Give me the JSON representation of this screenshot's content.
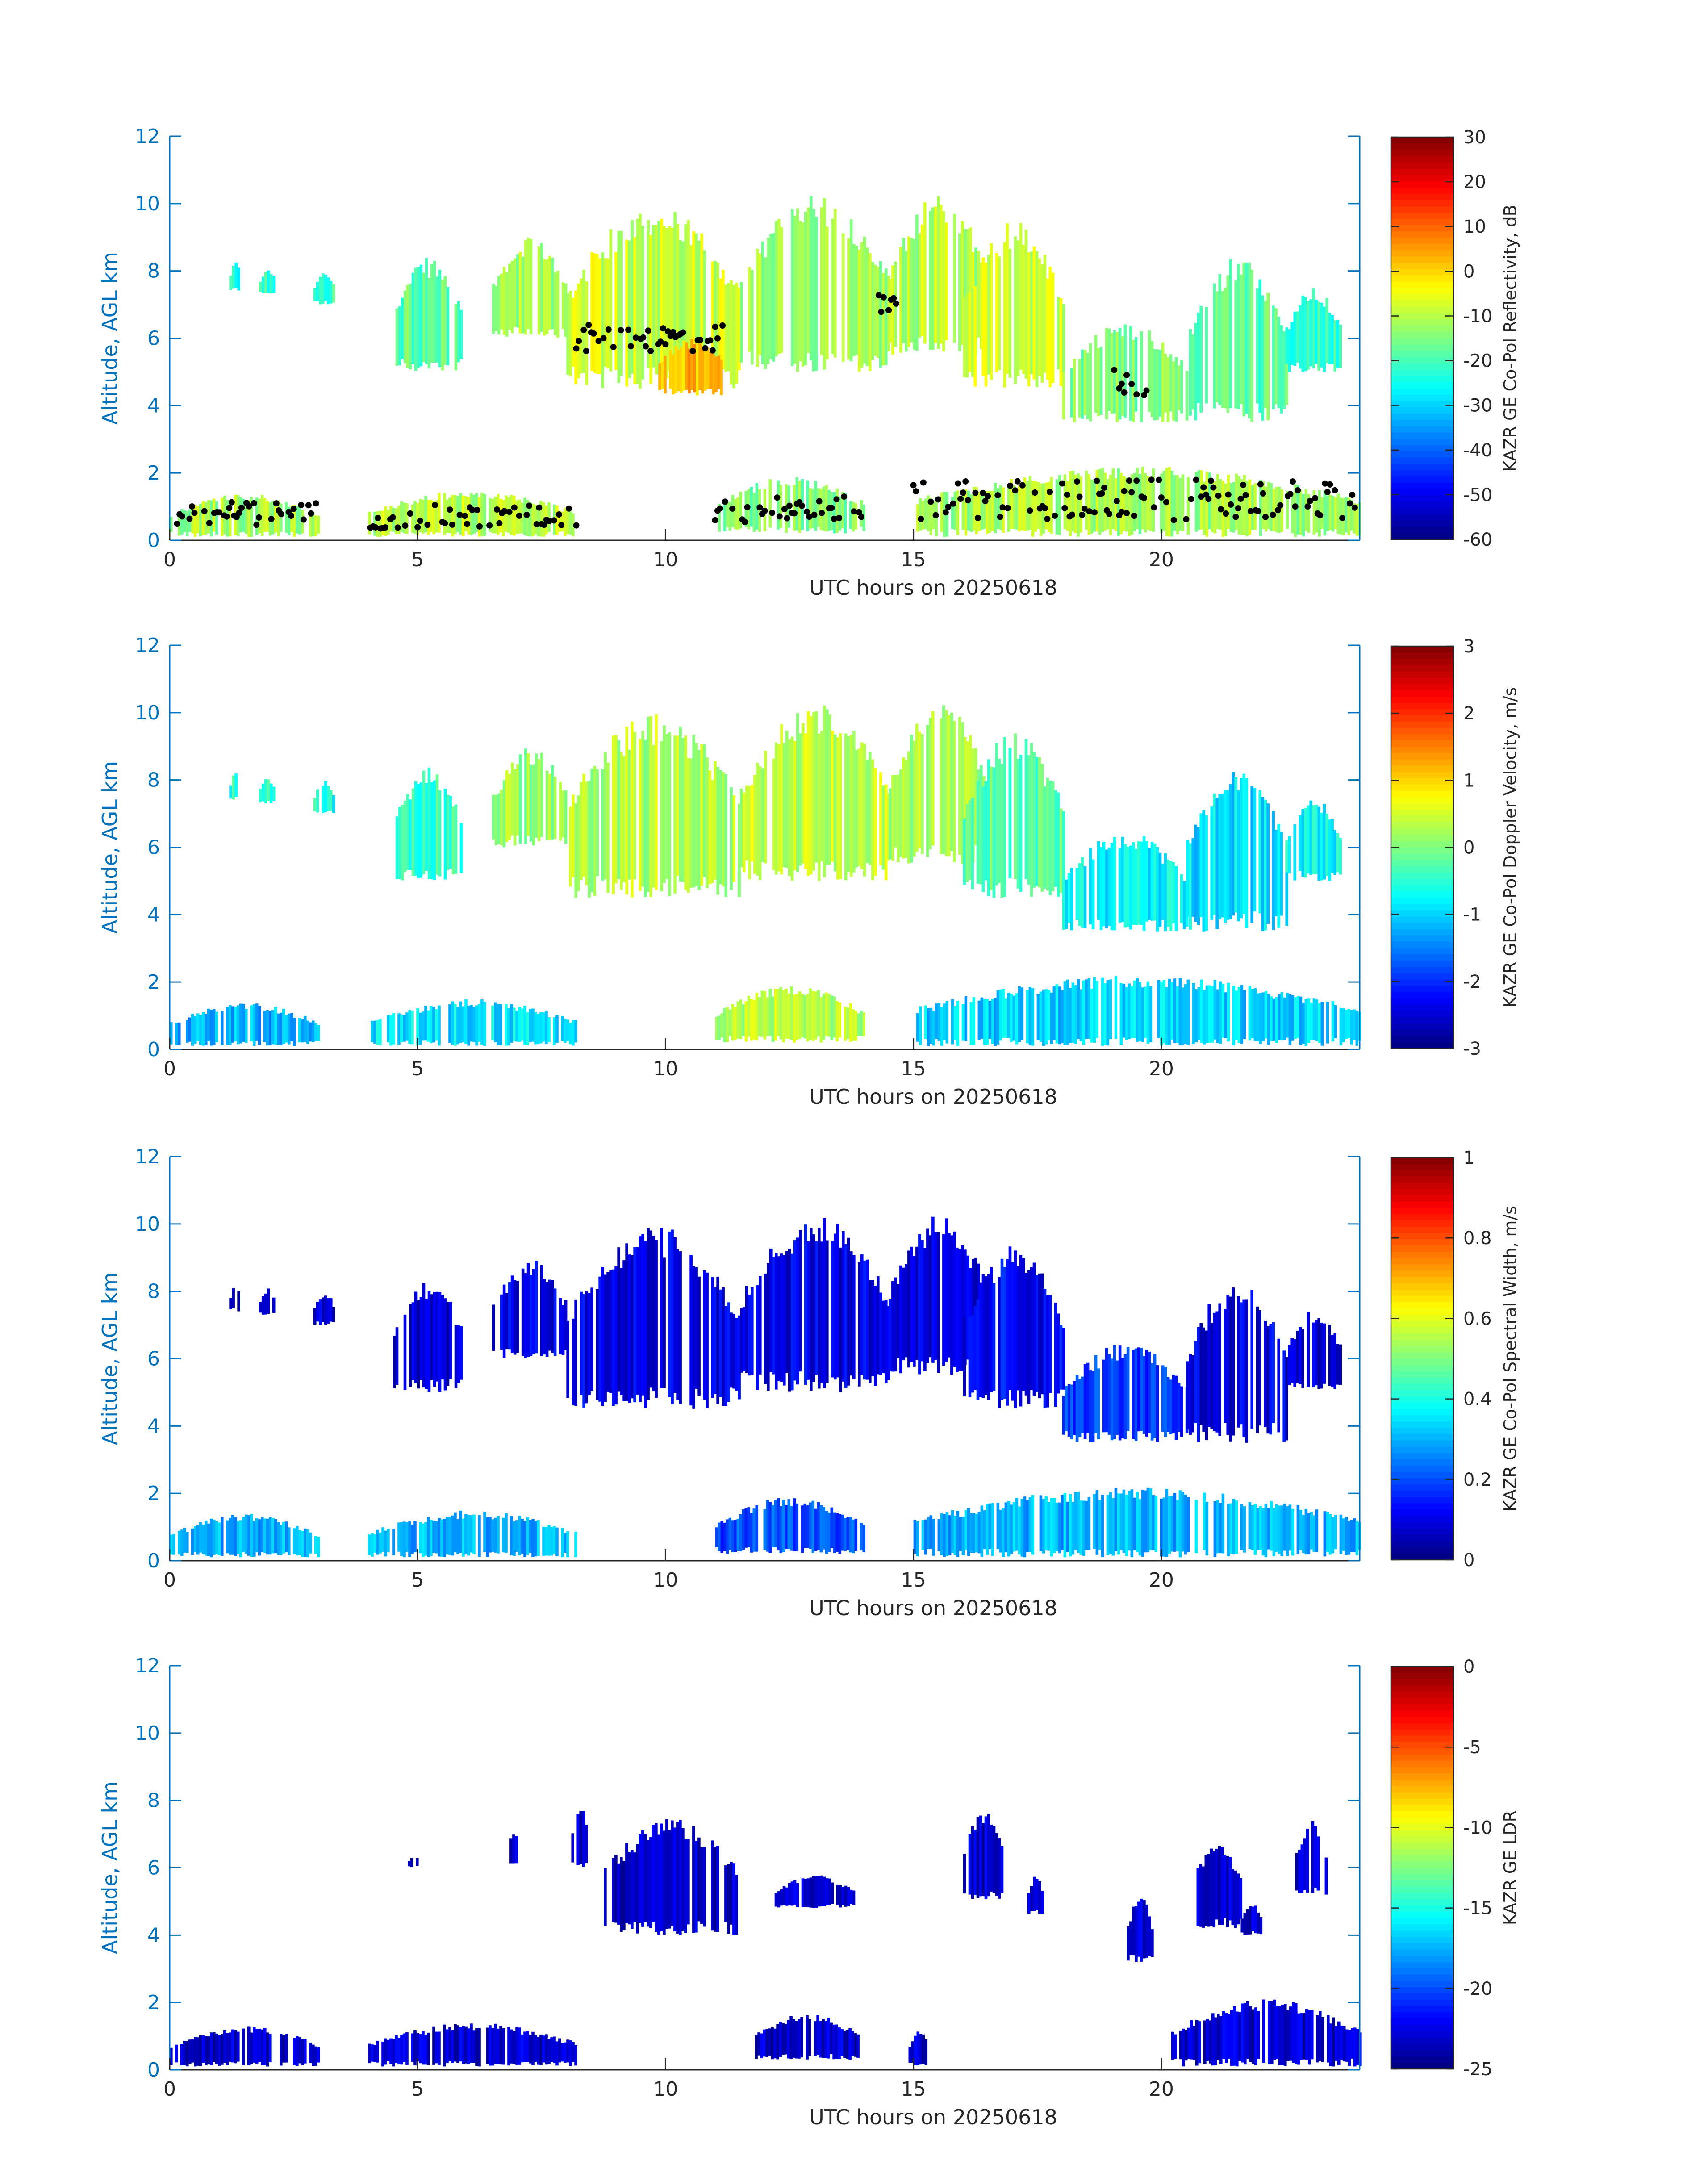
{
  "colors": {
    "axis_blue": "#0072BD",
    "text_dark": "#262626",
    "background": "#ffffff",
    "echo_black": "#000000",
    "colormap": "jet"
  },
  "chart_data": [
    {
      "type": "heatmap",
      "xlabel": "UTC hours on 20250618",
      "ylabel": "Altitude, AGL km",
      "xlim": [
        0,
        24
      ],
      "ylim": [
        0,
        12
      ],
      "xticks": [
        0,
        5,
        10,
        15,
        20
      ],
      "yticks": [
        0,
        2,
        4,
        6,
        8,
        10,
        12
      ],
      "colorbar": {
        "label": "KAZR GE Co-Pol Reflectivity, dB",
        "clim": [
          -60,
          30
        ],
        "ticks": [
          30,
          20,
          10,
          0,
          -10,
          -20,
          -30,
          -40,
          -50,
          -60
        ]
      },
      "overlay": "black cloud-base markers",
      "regions": [
        {
          "t": [
            1.2,
            1.4
          ],
          "z": [
            7.4,
            8.3
          ],
          "v": -25
        },
        {
          "t": [
            1.8,
            2.1
          ],
          "z": [
            7.3,
            8.1
          ],
          "v": -22
        },
        {
          "t": [
            2.9,
            3.3
          ],
          "z": [
            7.0,
            8.0
          ],
          "v": -20
        },
        {
          "t": [
            4.5,
            5.9
          ],
          "z": [
            5.0,
            8.4
          ],
          "v": -18
        },
        {
          "t": [
            6.5,
            8.0
          ],
          "z": [
            6.0,
            9.0
          ],
          "v": -12
        },
        {
          "t": [
            8.0,
            11.5
          ],
          "z": [
            4.5,
            10.0
          ],
          "v": -8
        },
        {
          "t": [
            9.8,
            11.2
          ],
          "z": [
            4.3,
            6.0
          ],
          "v": 2
        },
        {
          "t": [
            11.5,
            14.5
          ],
          "z": [
            5.0,
            10.3
          ],
          "v": -12
        },
        {
          "t": [
            14.5,
            16.5
          ],
          "z": [
            5.5,
            10.3
          ],
          "v": -10
        },
        {
          "t": [
            16.0,
            18.0
          ],
          "z": [
            4.5,
            9.5
          ],
          "v": -8
        },
        {
          "t": [
            18.0,
            20.5
          ],
          "z": [
            3.5,
            6.5
          ],
          "v": -15
        },
        {
          "t": [
            20.5,
            22.5
          ],
          "z": [
            3.5,
            8.5
          ],
          "v": -18
        },
        {
          "t": [
            22.5,
            23.6
          ],
          "z": [
            5.0,
            7.5
          ],
          "v": -22
        },
        {
          "t": [
            0.0,
            3.0
          ],
          "z": [
            0.1,
            1.4
          ],
          "v": -12
        },
        {
          "t": [
            4.0,
            8.2
          ],
          "z": [
            0.1,
            1.5
          ],
          "v": -10
        },
        {
          "t": [
            11.0,
            14.0
          ],
          "z": [
            0.2,
            1.9
          ],
          "v": -15
        },
        {
          "t": [
            15.0,
            24.0
          ],
          "z": [
            0.1,
            2.2
          ],
          "v": -12
        }
      ]
    },
    {
      "type": "heatmap",
      "xlabel": "UTC hours on 20250618",
      "ylabel": "Altitude, AGL km",
      "xlim": [
        0,
        24
      ],
      "ylim": [
        0,
        12
      ],
      "xticks": [
        0,
        5,
        10,
        15,
        20
      ],
      "yticks": [
        0,
        2,
        4,
        6,
        8,
        10,
        12
      ],
      "colorbar": {
        "label": "KAZR GE Co-Pol Doppler Velocity, m/s",
        "clim": [
          -3,
          3
        ],
        "ticks": [
          3,
          2,
          1,
          0,
          -1,
          -2,
          -3
        ]
      },
      "regions": [
        {
          "t": [
            1.2,
            1.4
          ],
          "z": [
            7.4,
            8.3
          ],
          "v": -0.5
        },
        {
          "t": [
            1.8,
            2.1
          ],
          "z": [
            7.3,
            8.1
          ],
          "v": -0.5
        },
        {
          "t": [
            2.9,
            3.3
          ],
          "z": [
            7.0,
            8.0
          ],
          "v": -0.6
        },
        {
          "t": [
            4.5,
            5.9
          ],
          "z": [
            5.0,
            8.4
          ],
          "v": -0.4
        },
        {
          "t": [
            6.5,
            8.0
          ],
          "z": [
            6.0,
            9.0
          ],
          "v": 0.2
        },
        {
          "t": [
            8.0,
            11.5
          ],
          "z": [
            4.5,
            10.0
          ],
          "v": 0.3
        },
        {
          "t": [
            11.5,
            14.5
          ],
          "z": [
            5.0,
            10.3
          ],
          "v": 0.4
        },
        {
          "t": [
            14.5,
            16.5
          ],
          "z": [
            5.5,
            10.3
          ],
          "v": 0.2
        },
        {
          "t": [
            16.0,
            18.0
          ],
          "z": [
            4.5,
            9.5
          ],
          "v": -0.2
        },
        {
          "t": [
            18.0,
            20.5
          ],
          "z": [
            3.5,
            6.5
          ],
          "v": -0.8
        },
        {
          "t": [
            20.5,
            22.5
          ],
          "z": [
            3.5,
            8.5
          ],
          "v": -0.9
        },
        {
          "t": [
            22.5,
            23.6
          ],
          "z": [
            5.0,
            7.5
          ],
          "v": -0.7
        },
        {
          "t": [
            0.0,
            3.0
          ],
          "z": [
            0.1,
            1.4
          ],
          "v": -1.2
        },
        {
          "t": [
            4.0,
            8.2
          ],
          "z": [
            0.1,
            1.5
          ],
          "v": -0.9
        },
        {
          "t": [
            11.0,
            14.0
          ],
          "z": [
            0.2,
            1.9
          ],
          "v": 0.3
        },
        {
          "t": [
            15.0,
            24.0
          ],
          "z": [
            0.1,
            2.2
          ],
          "v": -1.0
        }
      ]
    },
    {
      "type": "heatmap",
      "xlabel": "UTC hours on 20250618",
      "ylabel": "Altitude, AGL km",
      "xlim": [
        0,
        24
      ],
      "ylim": [
        0,
        12
      ],
      "xticks": [
        0,
        5,
        10,
        15,
        20
      ],
      "yticks": [
        0,
        2,
        4,
        6,
        8,
        10,
        12
      ],
      "colorbar": {
        "label": "KAZR GE Co-Pol Spectral Width, m/s",
        "clim": [
          0,
          1
        ],
        "ticks": [
          1,
          0.8,
          0.6,
          0.4,
          0.2,
          0
        ]
      },
      "regions": [
        {
          "t": [
            1.2,
            1.4
          ],
          "z": [
            7.4,
            8.3
          ],
          "v": 0.08
        },
        {
          "t": [
            1.8,
            2.1
          ],
          "z": [
            7.3,
            8.1
          ],
          "v": 0.08
        },
        {
          "t": [
            2.9,
            3.3
          ],
          "z": [
            7.0,
            8.0
          ],
          "v": 0.08
        },
        {
          "t": [
            4.5,
            5.9
          ],
          "z": [
            5.0,
            8.4
          ],
          "v": 0.08
        },
        {
          "t": [
            6.5,
            8.0
          ],
          "z": [
            6.0,
            9.0
          ],
          "v": 0.1
        },
        {
          "t": [
            8.0,
            11.5
          ],
          "z": [
            4.5,
            10.0
          ],
          "v": 0.1
        },
        {
          "t": [
            11.5,
            14.5
          ],
          "z": [
            5.0,
            10.3
          ],
          "v": 0.1
        },
        {
          "t": [
            14.5,
            16.5
          ],
          "z": [
            5.5,
            10.3
          ],
          "v": 0.1
        },
        {
          "t": [
            16.0,
            18.0
          ],
          "z": [
            4.5,
            9.5
          ],
          "v": 0.12
        },
        {
          "t": [
            18.0,
            20.5
          ],
          "z": [
            3.5,
            6.5
          ],
          "v": 0.18
        },
        {
          "t": [
            20.5,
            22.5
          ],
          "z": [
            3.5,
            8.5
          ],
          "v": 0.1
        },
        {
          "t": [
            22.5,
            23.6
          ],
          "z": [
            5.0,
            7.5
          ],
          "v": 0.08
        },
        {
          "t": [
            0.0,
            3.0
          ],
          "z": [
            0.1,
            1.4
          ],
          "v": 0.3
        },
        {
          "t": [
            4.0,
            8.2
          ],
          "z": [
            0.1,
            1.5
          ],
          "v": 0.3
        },
        {
          "t": [
            11.0,
            14.0
          ],
          "z": [
            0.2,
            1.9
          ],
          "v": 0.2
        },
        {
          "t": [
            15.0,
            24.0
          ],
          "z": [
            0.1,
            2.2
          ],
          "v": 0.3
        }
      ]
    },
    {
      "type": "heatmap",
      "xlabel": "UTC hours on 20250618",
      "ylabel": "Altitude, AGL km",
      "xlim": [
        0,
        24
      ],
      "ylim": [
        0,
        12
      ],
      "xticks": [
        0,
        5,
        10,
        15,
        20
      ],
      "yticks": [
        0,
        2,
        4,
        6,
        8,
        10,
        12
      ],
      "colorbar": {
        "label": "KAZR GE LDR",
        "clim": [
          -25,
          0
        ],
        "ticks": [
          0,
          -5,
          -10,
          -15,
          -20,
          -25
        ]
      },
      "regions": [
        {
          "t": [
            4.8,
            5.0
          ],
          "z": [
            6.0,
            6.4
          ],
          "v": -23
        },
        {
          "t": [
            6.8,
            7.0
          ],
          "z": [
            6.0,
            7.2
          ],
          "v": -23
        },
        {
          "t": [
            8.1,
            8.4
          ],
          "z": [
            6.0,
            8.0
          ],
          "v": -23
        },
        {
          "t": [
            8.7,
            11.5
          ],
          "z": [
            4.0,
            7.5
          ],
          "v": -23
        },
        {
          "t": [
            12.2,
            13.8
          ],
          "z": [
            4.8,
            5.8
          ],
          "v": -23
        },
        {
          "t": [
            16.0,
            16.8
          ],
          "z": [
            5.0,
            7.8
          ],
          "v": -23
        },
        {
          "t": [
            17.3,
            17.6
          ],
          "z": [
            4.6,
            5.8
          ],
          "v": -23
        },
        {
          "t": [
            19.3,
            19.8
          ],
          "z": [
            3.2,
            5.2
          ],
          "v": -23
        },
        {
          "t": [
            20.6,
            21.6
          ],
          "z": [
            4.2,
            6.8
          ],
          "v": -23
        },
        {
          "t": [
            21.6,
            22.0
          ],
          "z": [
            4.0,
            5.0
          ],
          "v": -23
        },
        {
          "t": [
            22.7,
            23.3
          ],
          "z": [
            5.2,
            7.5
          ],
          "v": -23
        },
        {
          "t": [
            0.0,
            3.0
          ],
          "z": [
            0.1,
            1.3
          ],
          "v": -23
        },
        {
          "t": [
            4.0,
            8.2
          ],
          "z": [
            0.1,
            1.4
          ],
          "v": -23
        },
        {
          "t": [
            11.8,
            13.9
          ],
          "z": [
            0.3,
            1.7
          ],
          "v": -23
        },
        {
          "t": [
            14.9,
            15.3
          ],
          "z": [
            0.1,
            1.2
          ],
          "v": -23
        },
        {
          "t": [
            20.2,
            24.0
          ],
          "z": [
            0.1,
            2.1
          ],
          "v": -23
        }
      ]
    }
  ]
}
